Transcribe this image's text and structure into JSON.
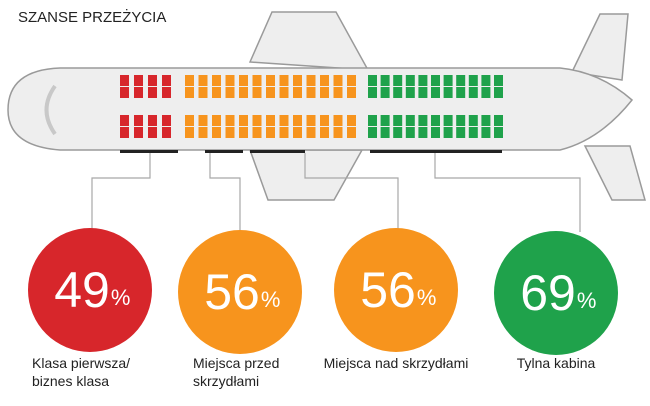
{
  "title": "SZANSE PRZEŻYCIA",
  "groups": [
    {
      "label": [
        "Klasa pierwsza/",
        "biznes klasa"
      ],
      "value": 49,
      "unit": "%",
      "color": "#d7262b"
    },
    {
      "label": [
        "Miejsca przed",
        "skrzydłami"
      ],
      "value": 56,
      "unit": "%",
      "color": "#f7941d"
    },
    {
      "label": [
        "Miejsca nad skrzydłami"
      ],
      "value": 56,
      "unit": "%",
      "color": "#f7941d"
    },
    {
      "label": [
        "Tylna kabina"
      ],
      "value": 69,
      "unit": "%",
      "color": "#1fa24b"
    }
  ]
}
